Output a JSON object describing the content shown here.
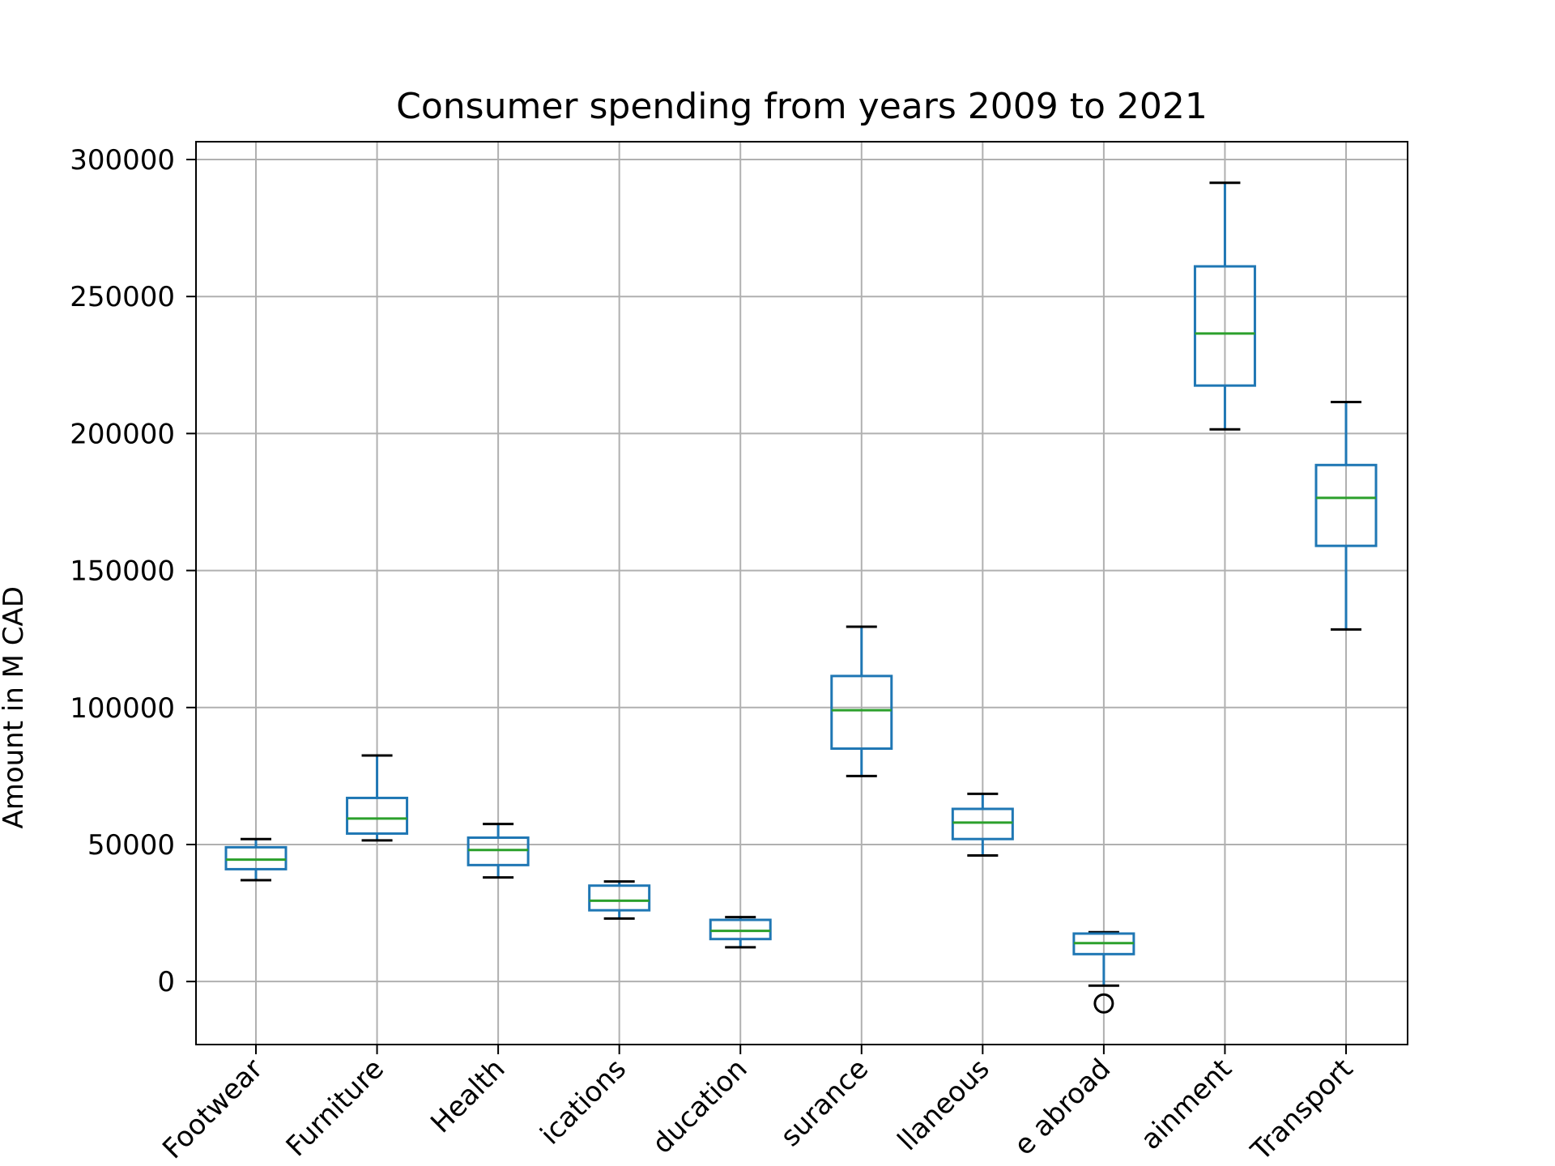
{
  "chart_data": {
    "type": "box",
    "title": "Consumer spending from years 2009 to 2021",
    "xlabel": "",
    "ylabel": "Amount in M CAD",
    "ylim": [
      -23000,
      306500
    ],
    "yticks": [
      0,
      50000,
      100000,
      150000,
      200000,
      250000,
      300000
    ],
    "ytick_labels": [
      "0",
      "50000",
      "100000",
      "150000",
      "200000",
      "250000",
      "300000"
    ],
    "grid": true,
    "categories": [
      "Footwear",
      "Furniture",
      "Health",
      "ications",
      "ducation",
      "surance",
      "llaneous",
      "e abroad",
      "ainment",
      "Transport"
    ],
    "boxes": [
      {
        "whisker_low": 37000,
        "q1": 41000,
        "median": 44500,
        "q3": 49000,
        "whisker_high": 52000,
        "outliers": []
      },
      {
        "whisker_low": 51500,
        "q1": 54000,
        "median": 59500,
        "q3": 67000,
        "whisker_high": 82500,
        "outliers": []
      },
      {
        "whisker_low": 38000,
        "q1": 42500,
        "median": 48000,
        "q3": 52500,
        "whisker_high": 57500,
        "outliers": []
      },
      {
        "whisker_low": 23000,
        "q1": 26000,
        "median": 29500,
        "q3": 35000,
        "whisker_high": 36500,
        "outliers": []
      },
      {
        "whisker_low": 12500,
        "q1": 15500,
        "median": 18500,
        "q3": 22500,
        "whisker_high": 23500,
        "outliers": []
      },
      {
        "whisker_low": 75000,
        "q1": 85000,
        "median": 99000,
        "q3": 111500,
        "whisker_high": 129500,
        "outliers": []
      },
      {
        "whisker_low": 46000,
        "q1": 52000,
        "median": 58000,
        "q3": 63000,
        "whisker_high": 68500,
        "outliers": []
      },
      {
        "whisker_low": -1500,
        "q1": 10000,
        "median": 14000,
        "q3": 17500,
        "whisker_high": 18000,
        "outliers": [
          -8000
        ]
      },
      {
        "whisker_low": 201500,
        "q1": 217500,
        "median": 236500,
        "q3": 261000,
        "whisker_high": 291500,
        "outliers": []
      },
      {
        "whisker_low": 128500,
        "q1": 159000,
        "median": 176500,
        "q3": 188500,
        "whisker_high": 211500,
        "outliers": []
      }
    ],
    "colors": {
      "box": "#1f77b4",
      "median": "#2ca02c",
      "whisker_cap": "#000000",
      "grid": "#b0b0b0",
      "axes": "#000000"
    }
  }
}
